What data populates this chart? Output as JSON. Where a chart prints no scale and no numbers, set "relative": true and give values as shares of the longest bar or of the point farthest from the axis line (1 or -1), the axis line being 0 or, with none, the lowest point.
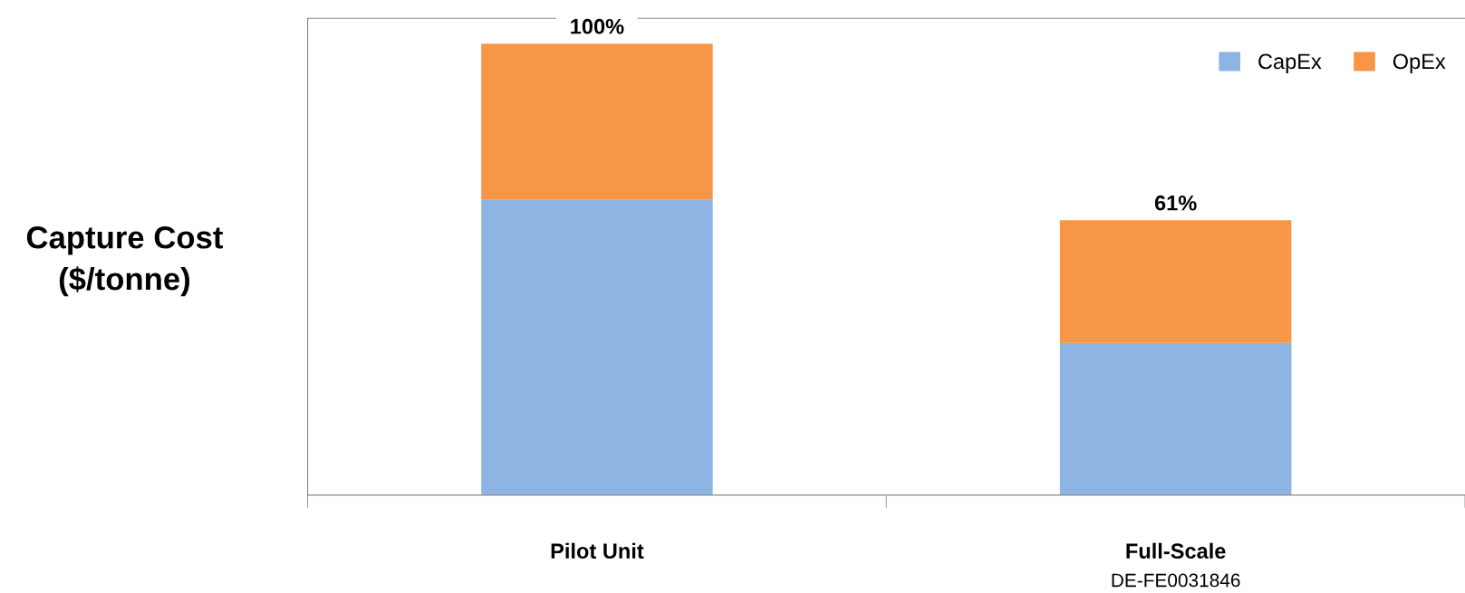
{
  "chart_data": {
    "type": "bar",
    "ylabel": "Capture Cost\n($/tonne)",
    "categories": [
      "Pilot Unit",
      "Full-Scale"
    ],
    "stacked": true,
    "relative": true,
    "series": [
      {
        "name": "CapEx",
        "color": "#8eb4e3",
        "values": [
          0.654,
          0.337
        ]
      },
      {
        "name": "OpEx",
        "color": "#f79646",
        "values": [
          0.346,
          0.272
        ]
      }
    ],
    "totals": [
      "100%",
      "61%"
    ],
    "annotations": [
      "DE-FE0031846"
    ],
    "legend": "top right",
    "grid": false
  }
}
